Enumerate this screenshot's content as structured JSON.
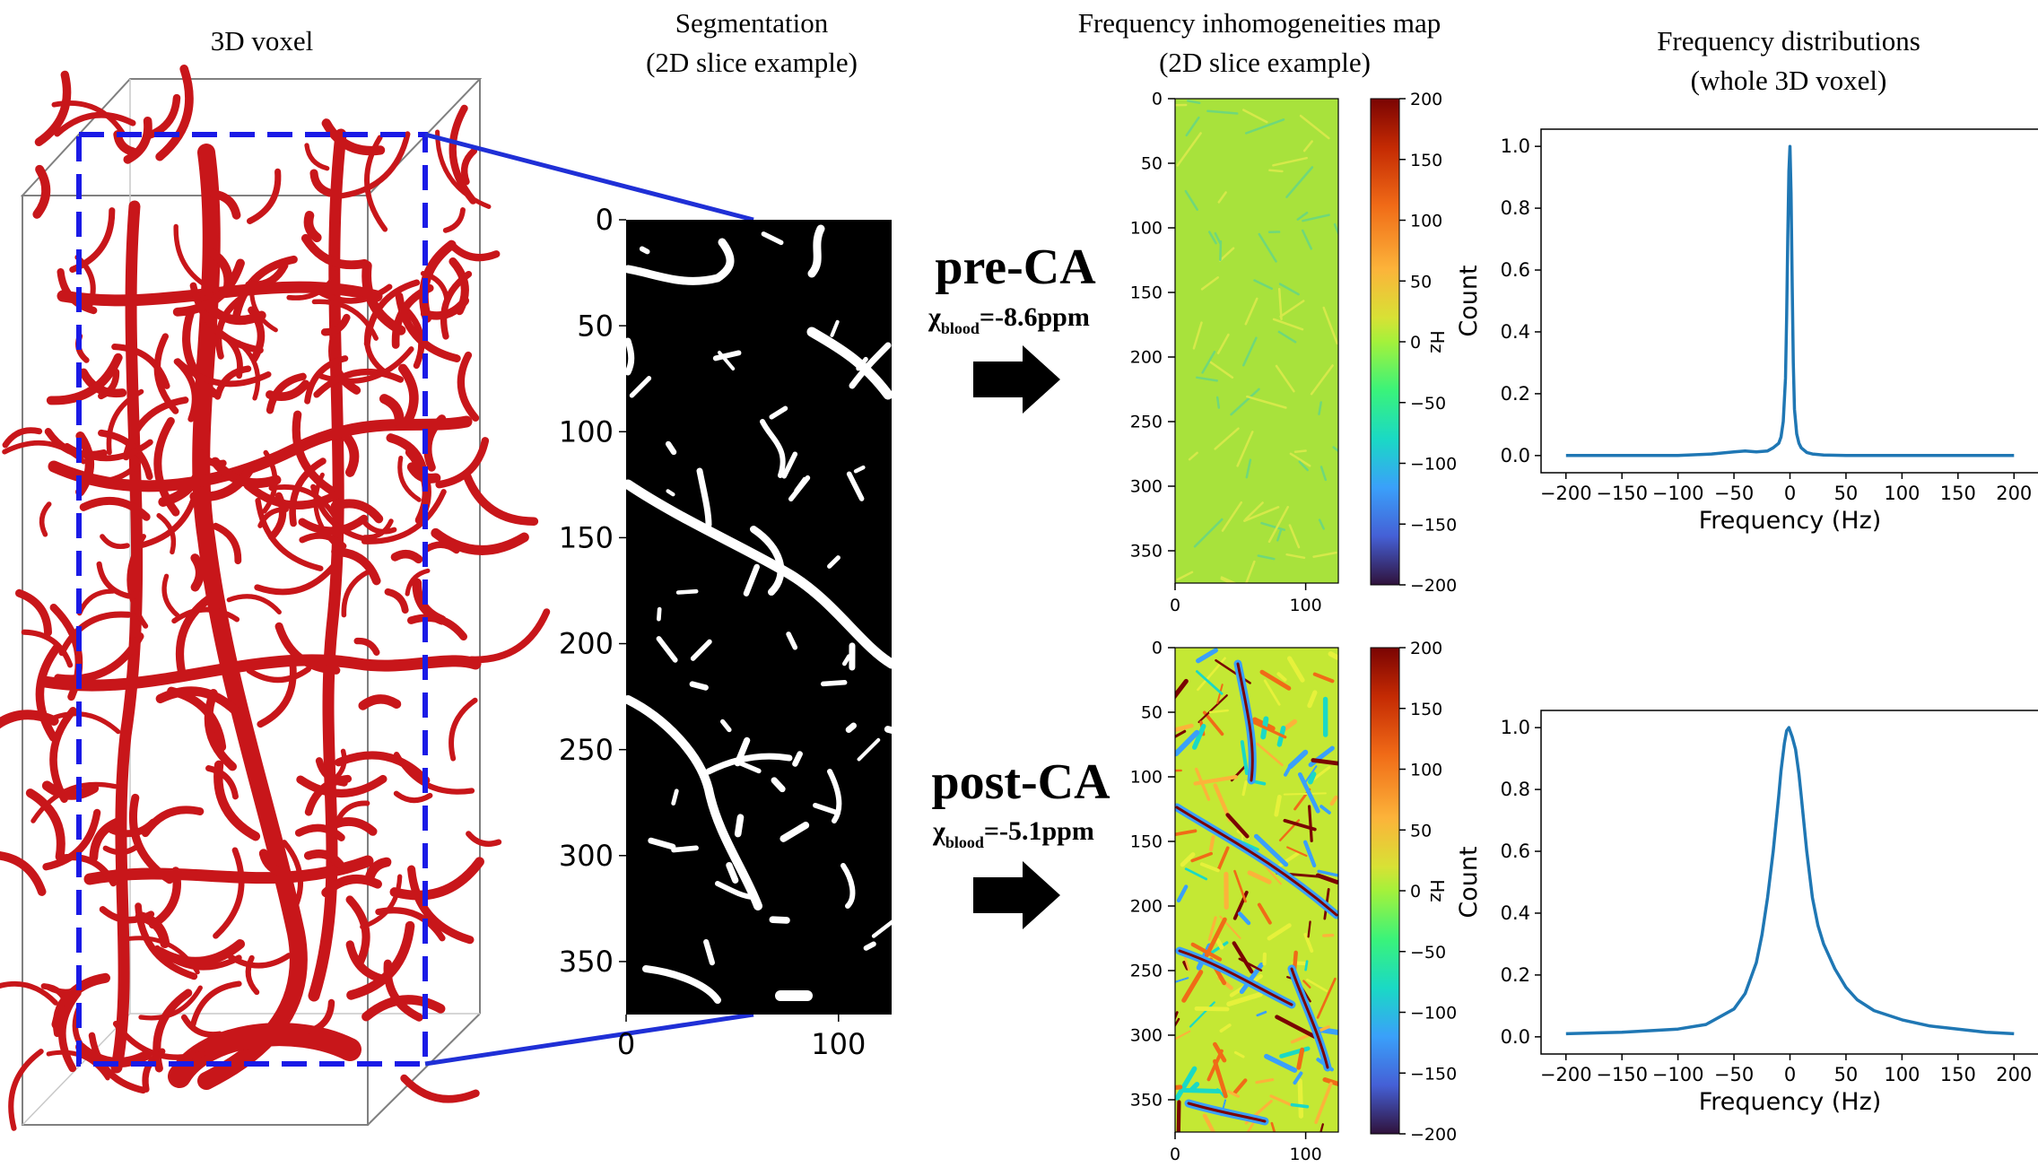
{
  "column_titles": {
    "voxel": "3D voxel",
    "segmentation_line1": "Segmentation",
    "segmentation_line2": "(2D slice example)",
    "freqmap_line1": "Frequency inhomogeneities map",
    "freqmap_line2": "(2D slice example)",
    "dist_line1": "Frequency distributions",
    "dist_line2": "(whole 3D voxel)"
  },
  "conditions": [
    {
      "label": "pre-CA",
      "chi_symbol": "χ",
      "chi_subscript": "blood",
      "chi_value": "=-8.6ppm"
    },
    {
      "label": "post-CA",
      "chi_symbol": "χ",
      "chi_subscript": "blood",
      "chi_value": "=-5.1ppm"
    }
  ],
  "segmentation_axes": {
    "y_ticks": [
      "0",
      "50",
      "100",
      "150",
      "200",
      "250",
      "300",
      "350"
    ],
    "x_ticks": [
      "0",
      "100"
    ]
  },
  "freq_map_axes": {
    "y_ticks": [
      "0",
      "50",
      "100",
      "150",
      "200",
      "250",
      "300",
      "350"
    ],
    "x_ticks": [
      "0",
      "100"
    ],
    "colorbar_ticks": [
      "200",
      "150",
      "100",
      "50",
      "0",
      "−50",
      "−100",
      "−150",
      "−200"
    ],
    "colorbar_label": "Hz"
  },
  "chart_data": [
    {
      "type": "line",
      "condition": "pre-CA",
      "xlabel": "Frequency (Hz)",
      "ylabel": "Count",
      "xlim": [
        -200,
        200
      ],
      "ylim": [
        0,
        1.0
      ],
      "x_tick_labels": [
        "−200",
        "−150",
        "−100",
        "−50",
        "0",
        "50",
        "100",
        "150",
        "200"
      ],
      "y_tick_labels": [
        "0.0",
        "0.2",
        "0.4",
        "0.6",
        "0.8",
        "1.0"
      ],
      "color": "#1f77b4",
      "x": [
        -200,
        -150,
        -100,
        -70,
        -50,
        -40,
        -30,
        -20,
        -15,
        -10,
        -8,
        -6,
        -4,
        -3,
        -2,
        -1,
        0,
        1,
        2,
        3,
        4,
        6,
        8,
        10,
        15,
        20,
        30,
        50,
        100,
        150,
        200
      ],
      "y": [
        0.0,
        0.0,
        0.0,
        0.005,
        0.012,
        0.015,
        0.012,
        0.015,
        0.025,
        0.04,
        0.06,
        0.11,
        0.25,
        0.45,
        0.7,
        0.92,
        1.0,
        0.85,
        0.55,
        0.3,
        0.15,
        0.07,
        0.04,
        0.025,
        0.01,
        0.005,
        0.002,
        0.0,
        0.0,
        0.0,
        0.0
      ]
    },
    {
      "type": "line",
      "condition": "post-CA",
      "xlabel": "Frequency (Hz)",
      "ylabel": "Count",
      "xlim": [
        -200,
        200
      ],
      "ylim": [
        0,
        1.0
      ],
      "x_tick_labels": [
        "−200",
        "−150",
        "−100",
        "−50",
        "0",
        "50",
        "100",
        "150",
        "200"
      ],
      "y_tick_labels": [
        "0.0",
        "0.2",
        "0.4",
        "0.6",
        "0.8",
        "1.0"
      ],
      "color": "#1f77b4",
      "x": [
        -200,
        -150,
        -100,
        -75,
        -50,
        -40,
        -30,
        -25,
        -20,
        -15,
        -10,
        -8,
        -5,
        -3,
        -1,
        0,
        2,
        5,
        8,
        10,
        15,
        20,
        25,
        30,
        40,
        50,
        60,
        75,
        100,
        125,
        150,
        175,
        200
      ],
      "y": [
        0.01,
        0.015,
        0.025,
        0.04,
        0.09,
        0.14,
        0.24,
        0.33,
        0.45,
        0.6,
        0.78,
        0.86,
        0.95,
        0.99,
        1.0,
        0.99,
        0.97,
        0.93,
        0.85,
        0.78,
        0.6,
        0.45,
        0.36,
        0.3,
        0.22,
        0.16,
        0.12,
        0.085,
        0.055,
        0.035,
        0.025,
        0.015,
        0.01
      ]
    }
  ],
  "colors": {
    "vessel_red": "#cc1a1a",
    "dashed_box_blue": "#1a1ae6",
    "connector_blue": "#1f2fd6",
    "curve_blue": "#1f77b4",
    "pre_map_background": "#a8e23c",
    "post_map_background": "#c4e834"
  }
}
